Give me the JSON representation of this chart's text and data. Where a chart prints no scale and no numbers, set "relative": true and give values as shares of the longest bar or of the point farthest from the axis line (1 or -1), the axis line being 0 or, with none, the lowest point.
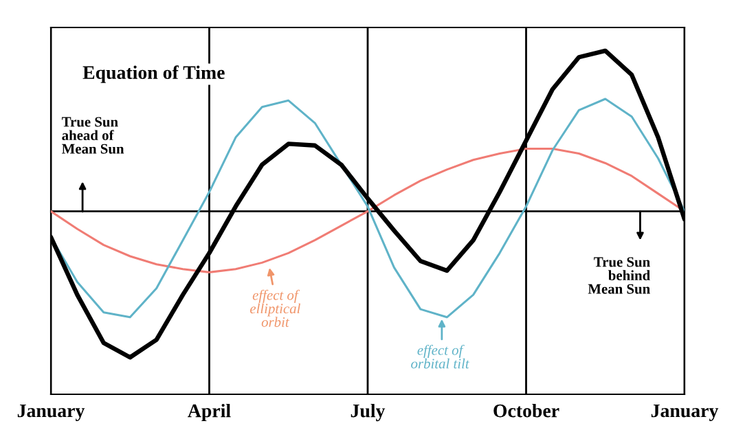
{
  "chart_data": {
    "type": "line",
    "title": "Equation of Time",
    "relative": true,
    "categories": [
      "January",
      null,
      null,
      null,
      null,
      null,
      "April",
      null,
      null,
      null,
      null,
      null,
      "July",
      null,
      null,
      null,
      null,
      null,
      "October",
      null,
      null,
      null,
      null,
      null,
      "January"
    ],
    "grid": "x",
    "ref_lines": [
      {
        "axis": "y",
        "value": 0,
        "color": "#000000"
      }
    ],
    "series": [
      {
        "color": "#f07c74",
        "values": [
          0,
          -0.11,
          -0.21,
          -0.28,
          -0.33,
          -0.36,
          -0.38,
          -0.36,
          -0.32,
          -0.26,
          -0.18,
          -0.09,
          0,
          0.1,
          0.19,
          0.26,
          0.32,
          0.36,
          0.39,
          0.39,
          0.36,
          0.3,
          0.22,
          0.11,
          0
        ]
      },
      {
        "color": "#5fb3c8",
        "values": [
          -0.16,
          -0.44,
          -0.63,
          -0.66,
          -0.48,
          -0.18,
          0.12,
          0.46,
          0.65,
          0.69,
          0.55,
          0.29,
          0.03,
          -0.35,
          -0.61,
          -0.66,
          -0.52,
          -0.26,
          0.03,
          0.38,
          0.63,
          0.7,
          0.59,
          0.33,
          0
        ]
      },
      {
        "color": "#000000",
        "values": [
          -0.16,
          -0.52,
          -0.82,
          -0.91,
          -0.8,
          -0.52,
          -0.26,
          0.03,
          0.29,
          0.42,
          0.41,
          0.29,
          0.08,
          -0.12,
          -0.31,
          -0.37,
          -0.18,
          0.12,
          0.44,
          0.76,
          0.96,
          1.0,
          0.85,
          0.46,
          -0.05
        ]
      }
    ],
    "annotations": [
      "True Sun\nahead of\nMean Sun",
      "True Sun\nbehind\nMean Sun",
      "effect of\nelliptical\norbit",
      "effect of\norbital tilt"
    ]
  }
}
